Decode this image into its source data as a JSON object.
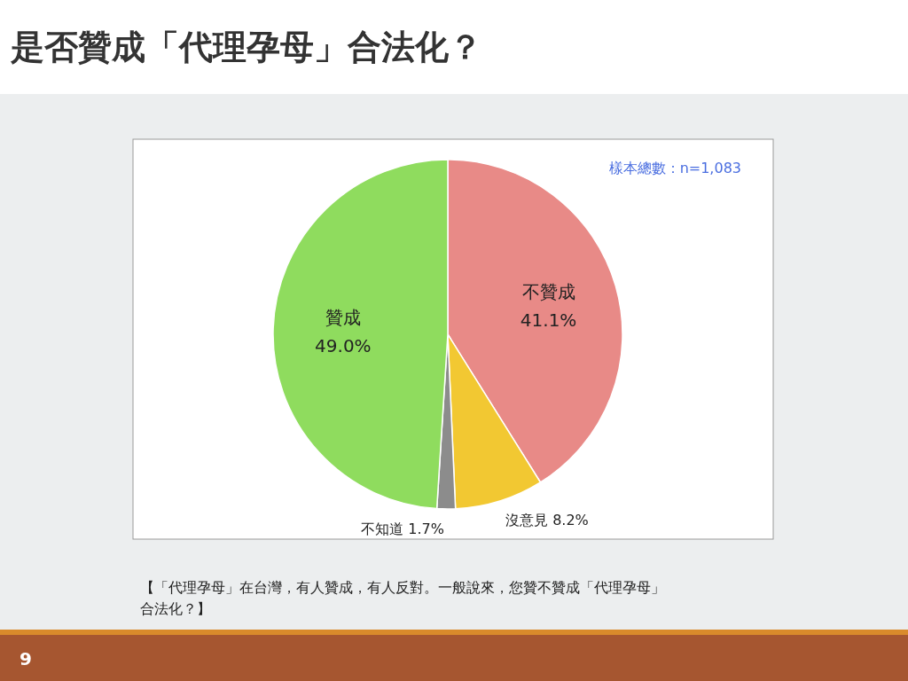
{
  "chart_data": {
    "type": "pie",
    "title": "是否贊成「代理孕母」合法化？",
    "categories": [
      "不贊成",
      "沒意見",
      "不知道",
      "贊成"
    ],
    "values": [
      41.1,
      8.2,
      1.7,
      49.0
    ],
    "colors": [
      "#e88a87",
      "#f2c832",
      "#8c8c8c",
      "#8fdc5e"
    ],
    "value_labels": [
      "41.1%",
      "8.2%",
      "1.7%",
      "49.0%"
    ],
    "annotations": [
      "樣本總數：n=1,083",
      "【「代理孕母」在台灣，有人贊成，有人反對。一般說來，您贊不贊成「代理孕母」合法化？】",
      "9"
    ]
  }
}
